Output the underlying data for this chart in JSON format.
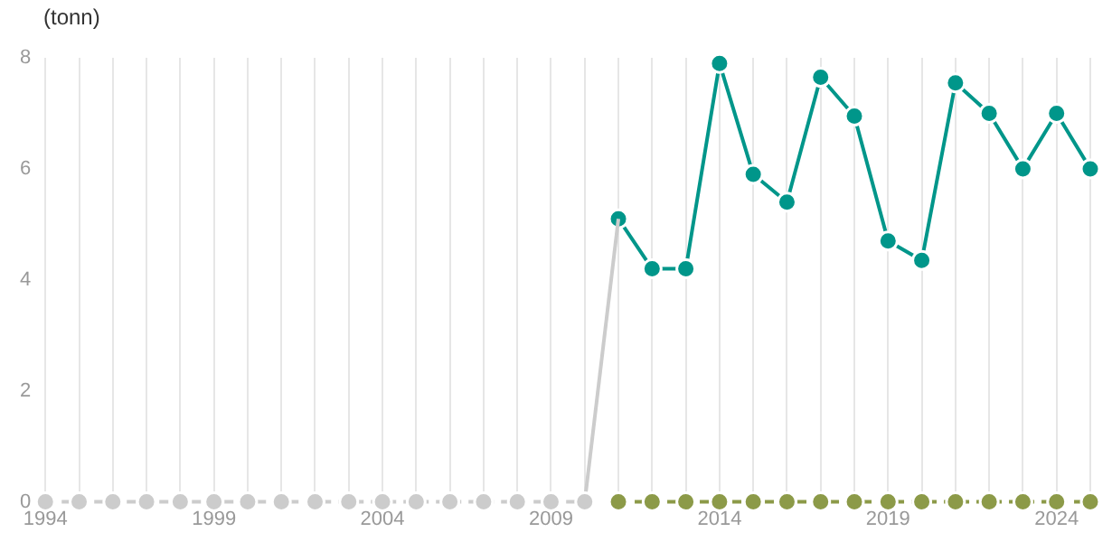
{
  "chart_data": {
    "type": "line",
    "ylabel": "(tonn)",
    "xlim": [
      1994,
      2025
    ],
    "xticks": [
      1994,
      {
        "value": 1995,
        "label": null
      },
      {
        "value": 1996,
        "label": null
      },
      {
        "value": 1997,
        "label": null
      },
      {
        "value": 1998,
        "label": null
      },
      1999,
      {
        "value": 2000,
        "label": null
      },
      {
        "value": 2001,
        "label": null
      },
      {
        "value": 2002,
        "label": null
      },
      {
        "value": 2003,
        "label": null
      },
      2004,
      {
        "value": 2005,
        "label": null
      },
      {
        "value": 2006,
        "label": null
      },
      {
        "value": 2007,
        "label": null
      },
      {
        "value": 2008,
        "label": null
      },
      2009,
      {
        "value": 2010,
        "label": null
      },
      {
        "value": 2011,
        "label": null
      },
      {
        "value": 2012,
        "label": null
      },
      {
        "value": 2013,
        "label": null
      },
      2014,
      {
        "value": 2015,
        "label": null
      },
      {
        "value": 2016,
        "label": null
      },
      {
        "value": 2017,
        "label": null
      },
      {
        "value": 2018,
        "label": null
      },
      2019,
      {
        "value": 2020,
        "label": null
      },
      {
        "value": 2021,
        "label": null
      },
      {
        "value": 2022,
        "label": null
      },
      {
        "value": 2023,
        "label": null
      },
      2024,
      {
        "value": 2025,
        "label": null
      }
    ],
    "ylim": [
      0,
      8
    ],
    "yticks": [
      0,
      2,
      4,
      6,
      8
    ],
    "grid": "x",
    "legend": false,
    "marker": "circle",
    "series": [
      {
        "color": "#cccccc",
        "line_style": "dashed",
        "x": [
          1994,
          1995,
          1996,
          1997,
          1998,
          1999,
          2000,
          2001,
          2002,
          2003,
          2004,
          2005,
          2006,
          2007,
          2008,
          2009,
          2010
        ],
        "values": [
          0,
          0,
          0,
          0,
          0,
          0,
          0,
          0,
          0,
          0,
          0,
          0,
          0,
          0,
          0,
          0,
          0
        ]
      },
      {
        "color": "#cccccc",
        "line_style": "solid",
        "marker": "none",
        "x": [
          2010,
          2011
        ],
        "values": [
          0,
          5.1
        ]
      },
      {
        "color": "#8c9a48",
        "line_style": "dashed",
        "x": [
          2011,
          2012,
          2013,
          2014,
          2015,
          2016,
          2017,
          2018,
          2019,
          2020,
          2021,
          2022,
          2023,
          2024,
          2025
        ],
        "values": [
          0,
          0,
          0,
          0,
          0,
          0,
          0,
          0,
          0,
          0,
          0,
          0,
          0,
          0,
          0
        ]
      },
      {
        "color": "#00968a",
        "line_style": "solid",
        "x": [
          2011,
          2012,
          2013,
          2014,
          2015,
          2016,
          2017,
          2018,
          2019,
          2020,
          2021,
          2022,
          2023,
          2024,
          2025
        ],
        "values": [
          5.1,
          4.2,
          4.2,
          7.9,
          5.9,
          5.4,
          7.65,
          6.95,
          4.7,
          4.35,
          7.55,
          7.0,
          6.0,
          7.0,
          6.0
        ]
      }
    ]
  }
}
